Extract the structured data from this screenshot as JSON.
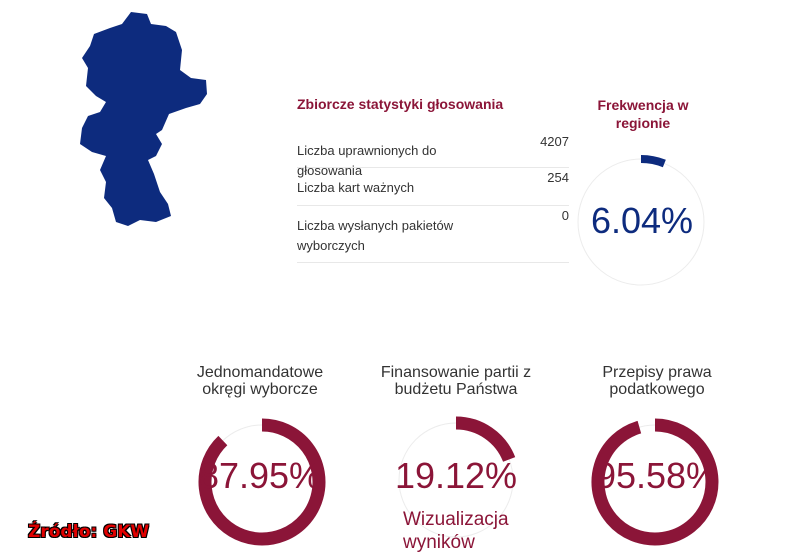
{
  "stats": {
    "title": "Zbiorcze statystyki głosowania",
    "rows": [
      {
        "label": "Liczba uprawnionych do głosowania",
        "value": "4207"
      },
      {
        "label": "Liczba kart ważnych",
        "value": "254"
      },
      {
        "label": "Liczba wysłanych pakietów wyborczych",
        "value": "0"
      }
    ]
  },
  "turnout": {
    "title": "Frekwencja w regionie",
    "value_text": "6.04%",
    "fraction": 0.0604,
    "color": "#0d2b7e"
  },
  "referendum": {
    "color": "#8b1538",
    "questions": [
      {
        "title": "Jednomandatowe okręgi wyborcze",
        "value_text": "87.95%",
        "fraction": 0.8795
      },
      {
        "title": "Finansowanie partii z budżetu Państwa",
        "value_text": "19.12%",
        "fraction": 0.1912
      },
      {
        "title": "Przepisy prawa podatkowego",
        "value_text": "95.58%",
        "fraction": 0.9558
      }
    ]
  },
  "visualization_link": "Wizualizacja wyników",
  "source": "Źródło: GKW",
  "map_color": "#0d2b7e"
}
